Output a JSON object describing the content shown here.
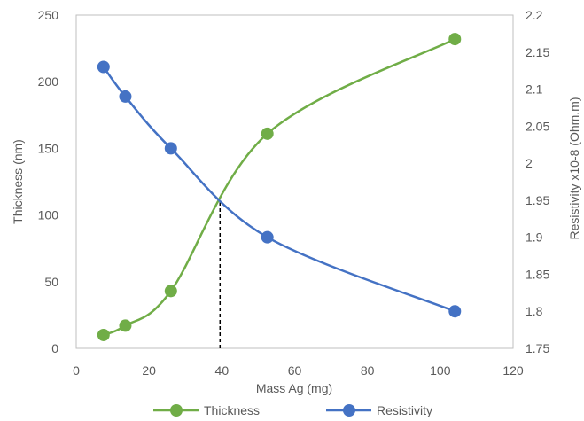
{
  "chart_data": {
    "type": "line",
    "title": "",
    "xlabel": "Mass Ag (mg)",
    "ylabel": "Thickness (nm)",
    "y2label": "Resistivity  x10-8 (Ohm.m)",
    "xlim": [
      0,
      120
    ],
    "ylim": [
      0,
      250
    ],
    "y2lim": [
      1.75,
      2.2
    ],
    "x_ticks": [
      "0",
      "20",
      "40",
      "60",
      "80",
      "100",
      "120"
    ],
    "y_ticks": [
      "0",
      "50",
      "100",
      "150",
      "200",
      "250"
    ],
    "y2_ticks": [
      "1.75",
      "1.8",
      "1.85",
      "1.9",
      "1.95",
      "2",
      "2.05",
      "2.1",
      "2.15",
      "2.2"
    ],
    "grid": false,
    "smooth": true,
    "legend_position": "bottom",
    "series": [
      {
        "name": "Thickness",
        "axis": "left",
        "color": "#70ad47",
        "x": [
          7.5,
          13.5,
          26,
          52.5,
          104
        ],
        "y": [
          10,
          17,
          43,
          161,
          232
        ]
      },
      {
        "name": "Resistivity",
        "axis": "right",
        "color": "#4472c4",
        "x": [
          7.5,
          13.5,
          26,
          52.5,
          104
        ],
        "y": [
          2.13,
          2.09,
          2.02,
          1.9,
          1.8
        ]
      }
    ],
    "annotations": [
      {
        "type": "vertical-dashed-line",
        "x": 39.5,
        "from_y": 0,
        "to_y": 111,
        "axis": "left",
        "color": "#000000"
      }
    ]
  }
}
